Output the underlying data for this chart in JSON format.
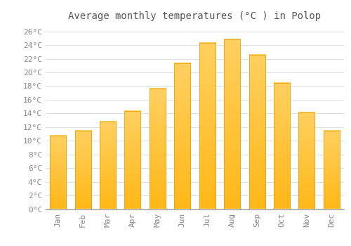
{
  "title": "Average monthly temperatures (°C ) in Polop",
  "months": [
    "Jan",
    "Feb",
    "Mar",
    "Apr",
    "May",
    "Jun",
    "Jul",
    "Aug",
    "Sep",
    "Oct",
    "Nov",
    "Dec"
  ],
  "values": [
    10.7,
    11.5,
    12.8,
    14.4,
    17.6,
    21.3,
    24.3,
    24.8,
    22.6,
    18.5,
    14.1,
    11.5
  ],
  "bar_color_top": "#FFD060",
  "bar_color_bottom": "#FFB020",
  "bar_color_mid": "#FFC030",
  "background_color": "#FFFFFF",
  "grid_color": "#DDDDDD",
  "ylim": [
    0,
    27
  ],
  "yticks": [
    0,
    2,
    4,
    6,
    8,
    10,
    12,
    14,
    16,
    18,
    20,
    22,
    24,
    26
  ],
  "tick_label_color": "#888888",
  "title_color": "#555555",
  "title_fontsize": 10,
  "axis_label_fontsize": 8,
  "font_family": "monospace"
}
